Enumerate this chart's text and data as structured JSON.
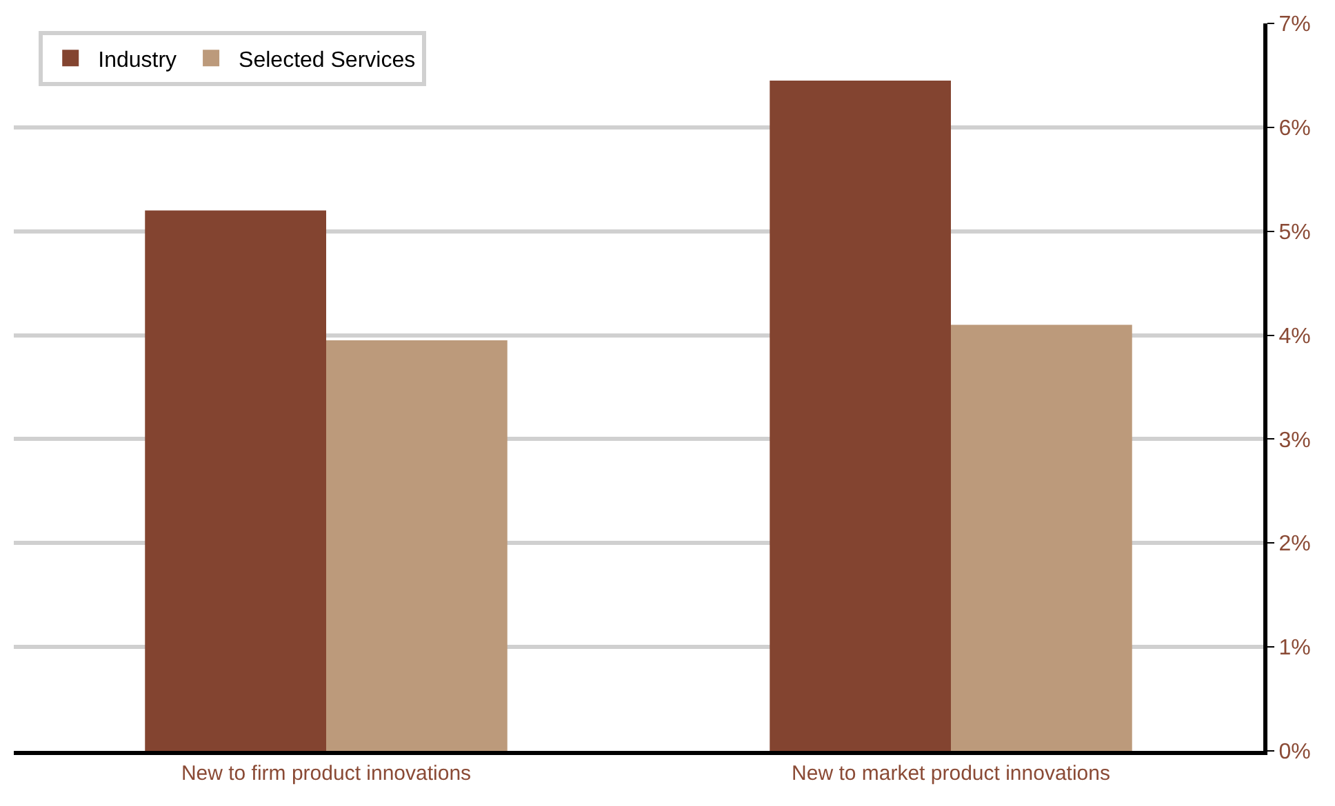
{
  "chart_data": {
    "type": "bar",
    "categories": [
      "New to firm product innovations",
      "New to market product innovations"
    ],
    "series": [
      {
        "name": "Industry",
        "color": "#834430",
        "values": [
          5.2,
          6.45
        ]
      },
      {
        "name": "Selected Services",
        "color": "#bc9a7b",
        "values": [
          3.95,
          4.1
        ]
      }
    ],
    "ylim": [
      0,
      7
    ],
    "yticks": [
      {
        "value": 0,
        "label": "0%"
      },
      {
        "value": 1,
        "label": "1%"
      },
      {
        "value": 2,
        "label": "2%"
      },
      {
        "value": 3,
        "label": "3%"
      },
      {
        "value": 4,
        "label": "4%"
      },
      {
        "value": 5,
        "label": "5%"
      },
      {
        "value": 6,
        "label": "6%"
      },
      {
        "value": 7,
        "label": "7%"
      }
    ],
    "grid": "y",
    "legend": "top left"
  }
}
